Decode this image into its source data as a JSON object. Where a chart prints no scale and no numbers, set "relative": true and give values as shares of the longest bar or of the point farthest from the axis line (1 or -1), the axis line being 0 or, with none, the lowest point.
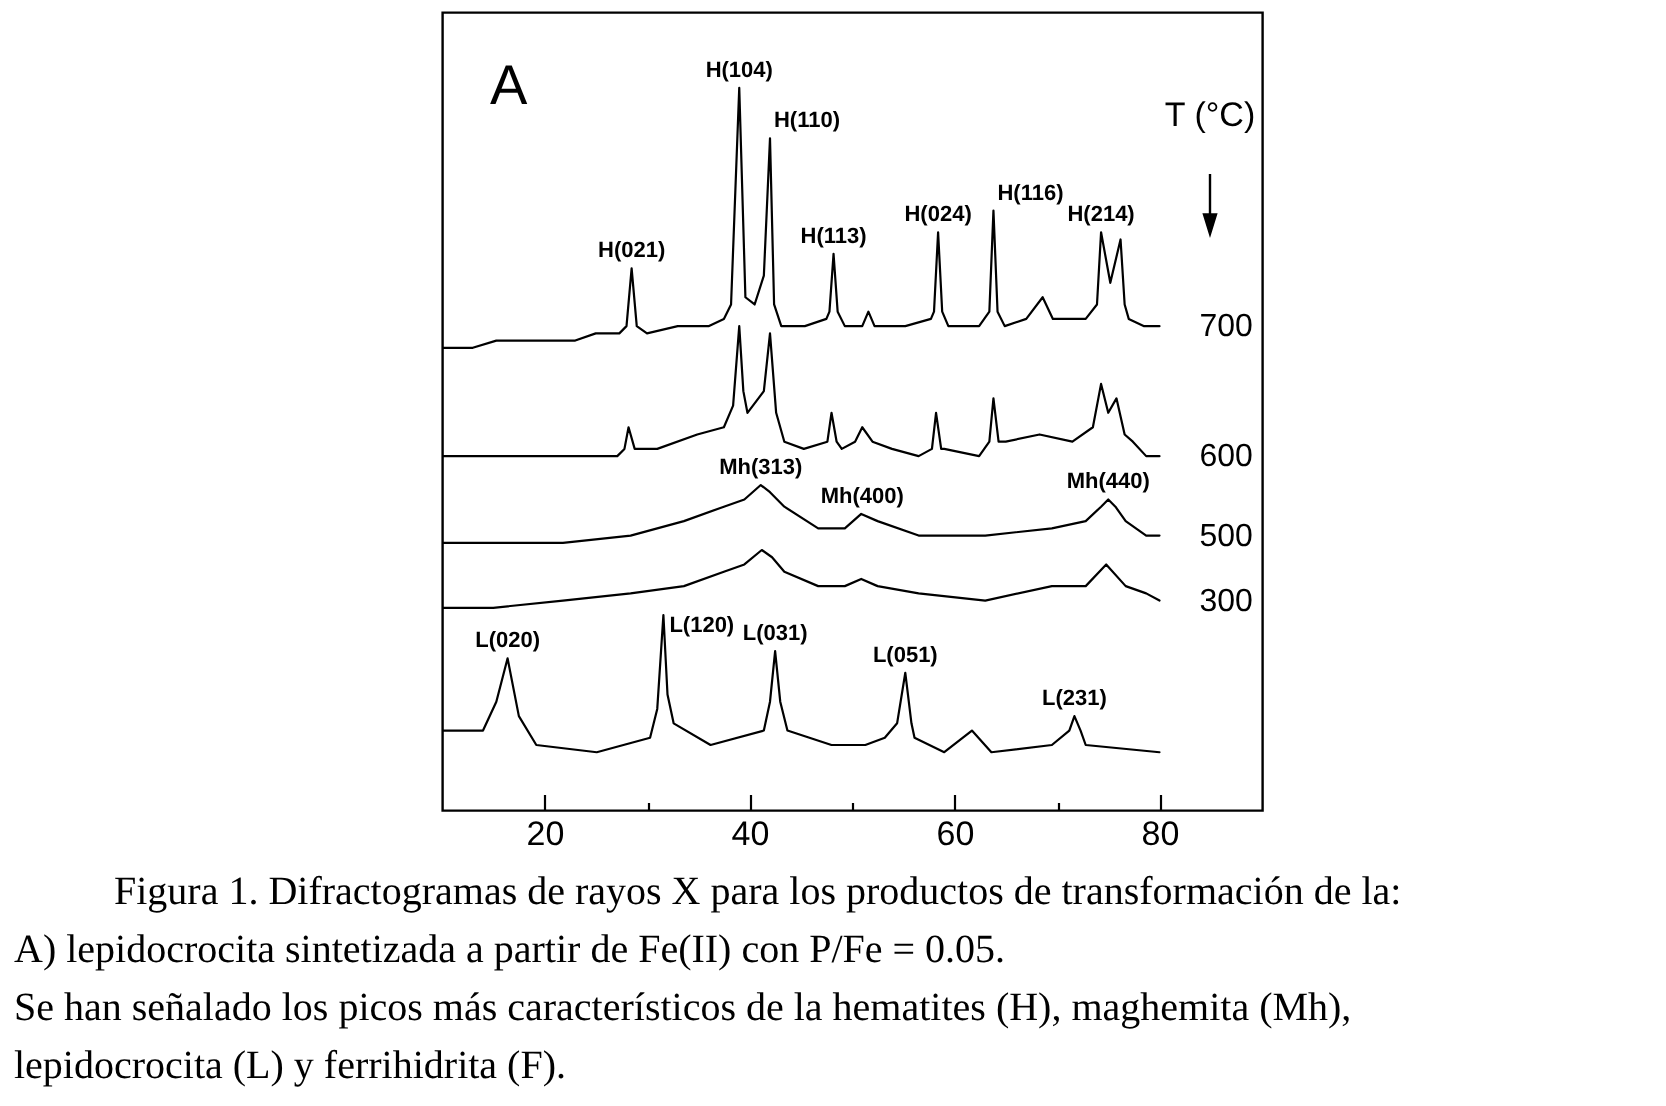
{
  "chart_data": {
    "type": "line",
    "title": "A",
    "legend_title": "T (°C)",
    "relative": true,
    "xlim": [
      10,
      90
    ],
    "xticks": [
      20,
      {
        "value": 30,
        "label": null
      },
      40,
      {
        "value": 50,
        "label": null
      },
      60,
      {
        "value": 70,
        "label": null
      },
      80
    ],
    "series": [
      {
        "name": "700",
        "color": "#000000",
        "x": [
          10.1,
          13,
          15.3,
          18,
          20,
          23,
          25,
          27.3,
          28.0,
          28.5,
          29.0,
          30,
          33,
          36,
          37.5,
          38.2,
          39.0,
          39.6,
          40.5,
          41.4,
          42.0,
          42.4,
          43.1,
          45.4,
          47.5,
          47.8,
          48.2,
          48.6,
          49.3,
          51.0,
          51.6,
          52.2,
          53,
          55.2,
          57.7,
          58.0,
          58.4,
          58.8,
          59.4,
          62.4,
          63.4,
          63.8,
          64.2,
          64.9,
          67,
          68.6,
          69.6,
          72.8,
          73.9,
          74.3,
          75.2,
          76.2,
          76.6,
          77.0,
          78.5,
          80.0
        ],
        "values": [
          0.64,
          0.64,
          0.65,
          0.65,
          0.65,
          0.65,
          0.66,
          0.66,
          0.67,
          0.75,
          0.67,
          0.66,
          0.67,
          0.67,
          0.68,
          0.7,
          1.0,
          0.71,
          0.7,
          0.74,
          0.93,
          0.7,
          0.67,
          0.67,
          0.68,
          0.69,
          0.77,
          0.69,
          0.67,
          0.67,
          0.69,
          0.67,
          0.67,
          0.67,
          0.68,
          0.69,
          0.8,
          0.69,
          0.67,
          0.67,
          0.69,
          0.83,
          0.69,
          0.67,
          0.68,
          0.71,
          0.68,
          0.68,
          0.7,
          0.8,
          0.73,
          0.79,
          0.7,
          0.68,
          0.67,
          0.67
        ]
      },
      {
        "name": "600",
        "color": "#000000",
        "x": [
          10.1,
          15,
          20,
          25,
          27.1,
          27.8,
          28.2,
          28.8,
          31,
          34.9,
          37.5,
          38.4,
          39.0,
          39.4,
          39.8,
          41.4,
          42.0,
          42.6,
          43.4,
          45.3,
          47.6,
          48.0,
          48.5,
          49.0,
          50.3,
          51.0,
          52,
          53.9,
          56.5,
          57.8,
          58.2,
          58.7,
          59.0,
          62.4,
          63.4,
          63.8,
          64.3,
          65.0,
          68.3,
          71.5,
          73.5,
          74.3,
          75.0,
          75.8,
          76.6,
          77.4,
          78.7,
          80
        ],
        "values": [
          0.49,
          0.49,
          0.49,
          0.49,
          0.49,
          0.5,
          0.53,
          0.5,
          0.5,
          0.52,
          0.53,
          0.56,
          0.67,
          0.58,
          0.55,
          0.58,
          0.66,
          0.55,
          0.51,
          0.5,
          0.51,
          0.55,
          0.51,
          0.5,
          0.51,
          0.53,
          0.51,
          0.5,
          0.49,
          0.5,
          0.55,
          0.5,
          0.5,
          0.49,
          0.51,
          0.57,
          0.51,
          0.51,
          0.52,
          0.51,
          0.53,
          0.59,
          0.55,
          0.57,
          0.52,
          0.51,
          0.49,
          0.49
        ]
      },
      {
        "name": "500",
        "color": "#000000",
        "x": [
          10.1,
          15,
          21.8,
          28.4,
          33.6,
          37.5,
          39.5,
          41.1,
          42.0,
          43.4,
          46.7,
          49.3,
          50.9,
          52.5,
          56.5,
          63.0,
          69.5,
          72.8,
          74.3,
          75.0,
          75.7,
          76.7,
          78.7,
          80
        ],
        "values": [
          0.37,
          0.37,
          0.37,
          0.38,
          0.4,
          0.42,
          0.43,
          0.45,
          0.44,
          0.42,
          0.39,
          0.39,
          0.41,
          0.4,
          0.38,
          0.38,
          0.39,
          0.4,
          0.42,
          0.43,
          0.42,
          0.4,
          0.38,
          0.38
        ]
      },
      {
        "name": "300",
        "color": "#000000",
        "x": [
          10.1,
          15,
          21.8,
          28.4,
          33.6,
          37.5,
          39.5,
          41.2,
          42.2,
          43.4,
          46.7,
          49.3,
          50.9,
          52.5,
          56.5,
          63.0,
          69.5,
          72.8,
          74.8,
          76.7,
          78.7,
          80
        ],
        "values": [
          0.28,
          0.28,
          0.29,
          0.3,
          0.31,
          0.33,
          0.34,
          0.36,
          0.35,
          0.33,
          0.31,
          0.31,
          0.32,
          0.31,
          0.3,
          0.29,
          0.31,
          0.31,
          0.34,
          0.31,
          0.3,
          0.29
        ]
      },
      {
        "color": "#000000",
        "x": [
          10.1,
          14.0,
          15.3,
          16.4,
          17.5,
          19.2,
          25.1,
          30.3,
          31.0,
          31.6,
          32.0,
          32.6,
          36.2,
          41.4,
          42.0,
          42.5,
          43.0,
          43.7,
          48.0,
          51.3,
          53.2,
          54.4,
          55.2,
          55.8,
          56.1,
          59.0,
          61.7,
          63.6,
          69.5,
          71.2,
          71.7,
          72.3,
          72.8,
          80
        ],
        "values": [
          0.11,
          0.11,
          0.15,
          0.21,
          0.13,
          0.09,
          0.08,
          0.1,
          0.14,
          0.27,
          0.16,
          0.12,
          0.09,
          0.11,
          0.15,
          0.22,
          0.15,
          0.11,
          0.09,
          0.09,
          0.1,
          0.12,
          0.19,
          0.12,
          0.1,
          0.08,
          0.11,
          0.08,
          0.09,
          0.11,
          0.13,
          0.11,
          0.09,
          0.08
        ]
      }
    ],
    "annotations": [
      {
        "text": "H(021)",
        "x": 28.5,
        "y": 0.75
      },
      {
        "text": "H(104)",
        "x": 39.0,
        "y": 1.0
      },
      {
        "text": "H(110)",
        "x": 42.0,
        "y": 0.93
      },
      {
        "text": "H(113)",
        "x": 48.2,
        "y": 0.77
      },
      {
        "text": "H(024)",
        "x": 58.4,
        "y": 0.8
      },
      {
        "text": "H(116)",
        "x": 63.8,
        "y": 0.83
      },
      {
        "text": "H(214)",
        "x": 74.3,
        "y": 0.8
      },
      {
        "text": "Mh(313)",
        "x": 41.1,
        "y": 0.45
      },
      {
        "text": "Mh(400)",
        "x": 51.0,
        "y": 0.41
      },
      {
        "text": "Mh(440)",
        "x": 75.0,
        "y": 0.43
      },
      {
        "text": "L(020)",
        "x": 16.4,
        "y": 0.21
      },
      {
        "text": "L(120)",
        "x": 31.6,
        "y": 0.27
      },
      {
        "text": "L(031)",
        "x": 42.5,
        "y": 0.22
      },
      {
        "text": "L(051)",
        "x": 55.2,
        "y": 0.19
      },
      {
        "text": "L(231)",
        "x": 71.7,
        "y": 0.13
      },
      "Figura 1. Difractogramas de rayos X para los productos de transformación de la:",
      "A) lepidocrocita sintetizada a partir de Fe(II) con P/Fe = 0.05.",
      "Se han señalado los picos más característicos de la hematites (H), maghemita (Mh),",
      "lepidocrocita (L) y ferrihidrita (F)."
    ]
  }
}
